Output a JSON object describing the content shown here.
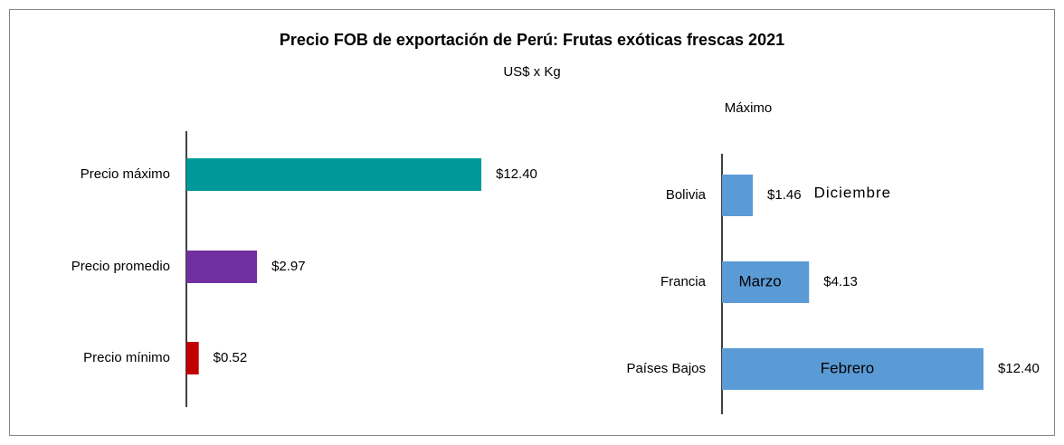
{
  "title": "Precio FOB de exportación de Perú: Frutas exóticas frescas 2021",
  "subtitle": "US$ x Kg",
  "chart_data": [
    {
      "type": "bar",
      "orientation": "horizontal",
      "categories": [
        "Precio máximo",
        "Precio promedio",
        "Precio mínimo"
      ],
      "values": [
        12.4,
        2.97,
        0.52
      ],
      "value_labels": [
        "$12.40",
        "$2.97",
        "$0.52"
      ],
      "colors": [
        "#009999",
        "#7030a0",
        "#c00000"
      ]
    },
    {
      "type": "bar",
      "orientation": "horizontal",
      "title": "Máximo",
      "categories": [
        "Bolivia",
        "Francia",
        "Países Bajos"
      ],
      "values": [
        1.46,
        4.13,
        12.4
      ],
      "value_labels": [
        "$1.46",
        "$4.13",
        "$12.40"
      ],
      "annotations": [
        "Diciembre",
        "Marzo",
        "Febrero"
      ],
      "color": "#5b9bd5"
    }
  ]
}
